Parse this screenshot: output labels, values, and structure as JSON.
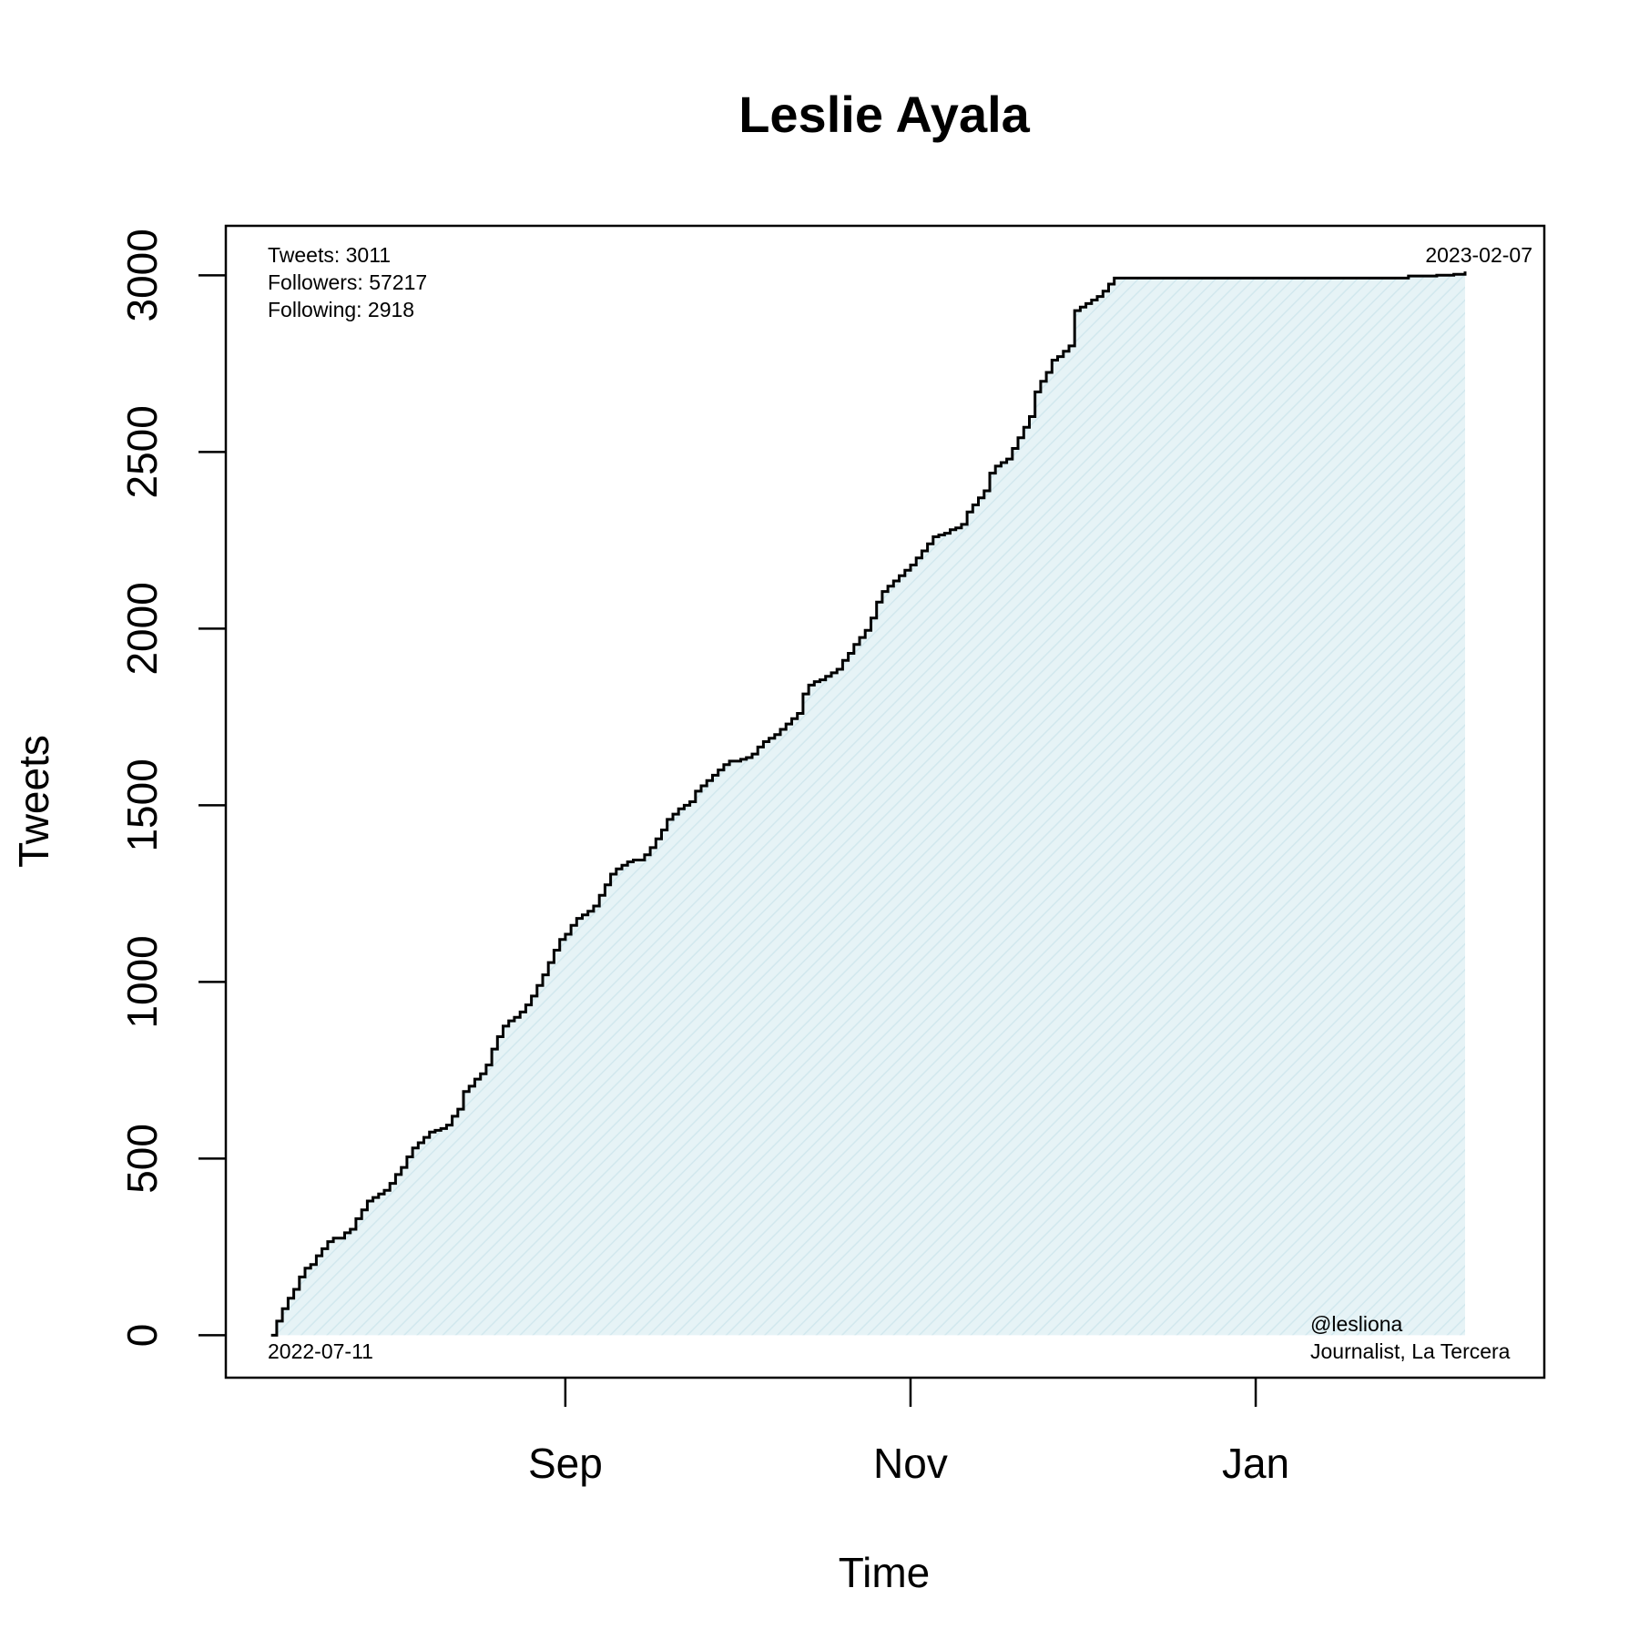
{
  "chart_data": {
    "type": "area",
    "title": "Leslie Ayala",
    "xlabel": "Time",
    "ylabel": "Tweets",
    "ylim": [
      -120,
      3140
    ],
    "xlim": [
      "2022-07-03",
      "2023-02-21"
    ],
    "y_ticks": [
      0,
      500,
      1000,
      1500,
      2000,
      2500,
      3000
    ],
    "x_ticks": [
      {
        "date": "2022-09-01",
        "label": "Sep"
      },
      {
        "date": "2022-11-01",
        "label": "Nov"
      },
      {
        "date": "2023-01-01",
        "label": "Jan"
      }
    ],
    "grid": false,
    "stats": [
      "Tweets: 3011",
      "Followers: 57217",
      "Following: 2918"
    ],
    "start_label": "2022-07-11",
    "end_label": "2023-02-07",
    "handle": "@lesliona",
    "bio": "Journalist, La Tercera",
    "colors": {
      "line": "#000000",
      "fill": "#e6f3f6",
      "hatch": "#d2e8ee"
    },
    "series": [
      {
        "points": [
          [
            "2022-07-11",
            0
          ],
          [
            "2022-07-12",
            40
          ],
          [
            "2022-07-13",
            75
          ],
          [
            "2022-07-14",
            105
          ],
          [
            "2022-07-15",
            130
          ],
          [
            "2022-07-16",
            165
          ],
          [
            "2022-07-17",
            190
          ],
          [
            "2022-07-18",
            200
          ],
          [
            "2022-07-19",
            225
          ],
          [
            "2022-07-20",
            245
          ],
          [
            "2022-07-21",
            265
          ],
          [
            "2022-07-22",
            275
          ],
          [
            "2022-07-23",
            275
          ],
          [
            "2022-07-24",
            290
          ],
          [
            "2022-07-25",
            300
          ],
          [
            "2022-07-26",
            330
          ],
          [
            "2022-07-27",
            355
          ],
          [
            "2022-07-28",
            380
          ],
          [
            "2022-07-29",
            390
          ],
          [
            "2022-07-30",
            400
          ],
          [
            "2022-07-31",
            410
          ],
          [
            "2022-08-01",
            430
          ],
          [
            "2022-08-02",
            455
          ],
          [
            "2022-08-03",
            475
          ],
          [
            "2022-08-04",
            505
          ],
          [
            "2022-08-05",
            530
          ],
          [
            "2022-08-06",
            545
          ],
          [
            "2022-08-07",
            560
          ],
          [
            "2022-08-08",
            575
          ],
          [
            "2022-08-09",
            580
          ],
          [
            "2022-08-10",
            585
          ],
          [
            "2022-08-11",
            595
          ],
          [
            "2022-08-12",
            620
          ],
          [
            "2022-08-13",
            640
          ],
          [
            "2022-08-14",
            690
          ],
          [
            "2022-08-15",
            705
          ],
          [
            "2022-08-16",
            725
          ],
          [
            "2022-08-17",
            740
          ],
          [
            "2022-08-18",
            765
          ],
          [
            "2022-08-19",
            810
          ],
          [
            "2022-08-20",
            845
          ],
          [
            "2022-08-21",
            875
          ],
          [
            "2022-08-22",
            890
          ],
          [
            "2022-08-23",
            900
          ],
          [
            "2022-08-24",
            915
          ],
          [
            "2022-08-25",
            935
          ],
          [
            "2022-08-26",
            960
          ],
          [
            "2022-08-27",
            990
          ],
          [
            "2022-08-28",
            1020
          ],
          [
            "2022-08-29",
            1055
          ],
          [
            "2022-08-30",
            1090
          ],
          [
            "2022-08-31",
            1120
          ],
          [
            "2022-09-01",
            1135
          ],
          [
            "2022-09-02",
            1160
          ],
          [
            "2022-09-03",
            1180
          ],
          [
            "2022-09-04",
            1190
          ],
          [
            "2022-09-05",
            1200
          ],
          [
            "2022-09-06",
            1215
          ],
          [
            "2022-09-07",
            1245
          ],
          [
            "2022-09-08",
            1275
          ],
          [
            "2022-09-09",
            1305
          ],
          [
            "2022-09-10",
            1320
          ],
          [
            "2022-09-11",
            1330
          ],
          [
            "2022-09-12",
            1340
          ],
          [
            "2022-09-13",
            1345
          ],
          [
            "2022-09-14",
            1345
          ],
          [
            "2022-09-15",
            1360
          ],
          [
            "2022-09-16",
            1380
          ],
          [
            "2022-09-17",
            1405
          ],
          [
            "2022-09-18",
            1430
          ],
          [
            "2022-09-19",
            1460
          ],
          [
            "2022-09-20",
            1475
          ],
          [
            "2022-09-21",
            1490
          ],
          [
            "2022-09-22",
            1500
          ],
          [
            "2022-09-23",
            1510
          ],
          [
            "2022-09-24",
            1540
          ],
          [
            "2022-09-25",
            1555
          ],
          [
            "2022-09-26",
            1570
          ],
          [
            "2022-09-27",
            1585
          ],
          [
            "2022-09-28",
            1600
          ],
          [
            "2022-09-29",
            1615
          ],
          [
            "2022-09-30",
            1625
          ],
          [
            "2022-10-01",
            1625
          ],
          [
            "2022-10-02",
            1630
          ],
          [
            "2022-10-03",
            1635
          ],
          [
            "2022-10-04",
            1645
          ],
          [
            "2022-10-05",
            1665
          ],
          [
            "2022-10-06",
            1680
          ],
          [
            "2022-10-07",
            1690
          ],
          [
            "2022-10-08",
            1700
          ],
          [
            "2022-10-09",
            1715
          ],
          [
            "2022-10-10",
            1730
          ],
          [
            "2022-10-11",
            1745
          ],
          [
            "2022-10-12",
            1760
          ],
          [
            "2022-10-13",
            1815
          ],
          [
            "2022-10-14",
            1840
          ],
          [
            "2022-10-15",
            1850
          ],
          [
            "2022-10-16",
            1855
          ],
          [
            "2022-10-17",
            1865
          ],
          [
            "2022-10-18",
            1875
          ],
          [
            "2022-10-19",
            1885
          ],
          [
            "2022-10-20",
            1910
          ],
          [
            "2022-10-21",
            1930
          ],
          [
            "2022-10-22",
            1955
          ],
          [
            "2022-10-23",
            1975
          ],
          [
            "2022-10-24",
            1995
          ],
          [
            "2022-10-25",
            2030
          ],
          [
            "2022-10-26",
            2075
          ],
          [
            "2022-10-27",
            2105
          ],
          [
            "2022-10-28",
            2120
          ],
          [
            "2022-10-29",
            2135
          ],
          [
            "2022-10-30",
            2150
          ],
          [
            "2022-10-31",
            2165
          ],
          [
            "2022-11-01",
            2180
          ],
          [
            "2022-11-02",
            2200
          ],
          [
            "2022-11-03",
            2220
          ],
          [
            "2022-11-04",
            2240
          ],
          [
            "2022-11-05",
            2260
          ],
          [
            "2022-11-06",
            2265
          ],
          [
            "2022-11-07",
            2270
          ],
          [
            "2022-11-08",
            2280
          ],
          [
            "2022-11-09",
            2285
          ],
          [
            "2022-11-10",
            2295
          ],
          [
            "2022-11-11",
            2330
          ],
          [
            "2022-11-12",
            2350
          ],
          [
            "2022-11-13",
            2370
          ],
          [
            "2022-11-14",
            2390
          ],
          [
            "2022-11-15",
            2440
          ],
          [
            "2022-11-16",
            2460
          ],
          [
            "2022-11-17",
            2470
          ],
          [
            "2022-11-18",
            2480
          ],
          [
            "2022-11-19",
            2510
          ],
          [
            "2022-11-20",
            2540
          ],
          [
            "2022-11-21",
            2570
          ],
          [
            "2022-11-22",
            2600
          ],
          [
            "2022-11-23",
            2670
          ],
          [
            "2022-11-24",
            2700
          ],
          [
            "2022-11-25",
            2725
          ],
          [
            "2022-11-26",
            2760
          ],
          [
            "2022-11-27",
            2770
          ],
          [
            "2022-11-28",
            2785
          ],
          [
            "2022-11-29",
            2800
          ],
          [
            "2022-11-30",
            2900
          ],
          [
            "2022-12-01",
            2910
          ],
          [
            "2022-12-02",
            2920
          ],
          [
            "2022-12-03",
            2930
          ],
          [
            "2022-12-04",
            2940
          ],
          [
            "2022-12-05",
            2955
          ],
          [
            "2022-12-06",
            2975
          ],
          [
            "2022-12-07",
            2992
          ],
          [
            "2022-12-15",
            2992
          ],
          [
            "2022-12-31",
            2992
          ],
          [
            "2023-01-15",
            2992
          ],
          [
            "2023-01-26",
            2992
          ],
          [
            "2023-01-28",
            2998
          ],
          [
            "2023-02-02",
            3000
          ],
          [
            "2023-02-05",
            3003
          ],
          [
            "2023-02-07",
            3011
          ]
        ]
      }
    ]
  }
}
